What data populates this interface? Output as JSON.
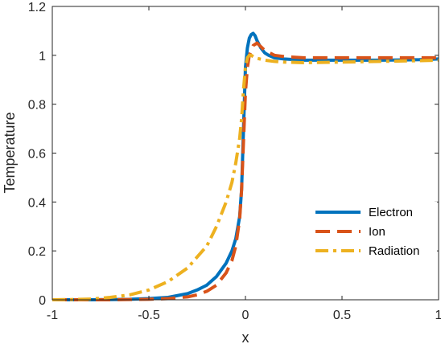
{
  "chart_data": {
    "type": "line",
    "xlabel": "x",
    "ylabel": "Temperature",
    "xlim": [
      -1,
      1
    ],
    "ylim": [
      0,
      1.2
    ],
    "xticks": [
      -1,
      -0.5,
      0,
      0.5,
      1
    ],
    "yticks": [
      0,
      0.2,
      0.4,
      0.6,
      0.8,
      1,
      1.2
    ],
    "xtick_labels": [
      "-1",
      "-0.5",
      "0",
      "0.5",
      "1"
    ],
    "ytick_labels": [
      "0",
      "0.2",
      "0.4",
      "0.6",
      "0.8",
      "1",
      "1.2"
    ],
    "grid": false,
    "legend_position": "lower-right",
    "series": [
      {
        "name": "Electron",
        "color": "#0072BD",
        "style": "solid",
        "x": [
          -1,
          -0.8,
          -0.6,
          -0.5,
          -0.4,
          -0.3,
          -0.25,
          -0.2,
          -0.15,
          -0.1,
          -0.07,
          -0.05,
          -0.03,
          -0.02,
          -0.01,
          0,
          0.01,
          0.02,
          0.03,
          0.04,
          0.05,
          0.06,
          0.08,
          0.1,
          0.12,
          0.15,
          0.2,
          0.3,
          0.5,
          0.7,
          0.9,
          1
        ],
        "y": [
          0,
          0,
          0.002,
          0.005,
          0.01,
          0.025,
          0.04,
          0.06,
          0.095,
          0.15,
          0.2,
          0.25,
          0.34,
          0.45,
          0.7,
          0.95,
          1.03,
          1.07,
          1.085,
          1.09,
          1.08,
          1.06,
          1.03,
          1.01,
          1.0,
          0.99,
          0.985,
          0.98,
          0.98,
          0.98,
          0.982,
          0.985
        ]
      },
      {
        "name": "Ion",
        "color": "#D95319",
        "style": "dashed",
        "x": [
          -1,
          -0.7,
          -0.5,
          -0.4,
          -0.3,
          -0.25,
          -0.2,
          -0.15,
          -0.1,
          -0.07,
          -0.05,
          -0.03,
          -0.02,
          -0.01,
          0,
          0.01,
          0.02,
          0.04,
          0.06,
          0.1,
          0.15,
          0.2,
          0.3,
          0.5,
          0.7,
          0.9,
          1
        ],
        "y": [
          0,
          0,
          0.002,
          0.005,
          0.012,
          0.02,
          0.035,
          0.06,
          0.11,
          0.16,
          0.22,
          0.33,
          0.45,
          0.65,
          0.85,
          0.95,
          1.0,
          1.04,
          1.05,
          1.02,
          1.0,
          0.995,
          0.99,
          0.99,
          0.99,
          0.99,
          0.99
        ]
      },
      {
        "name": "Radiation",
        "color": "#EDB120",
        "style": "dashdot",
        "x": [
          -1,
          -0.9,
          -0.8,
          -0.7,
          -0.6,
          -0.5,
          -0.4,
          -0.3,
          -0.2,
          -0.15,
          -0.1,
          -0.07,
          -0.05,
          -0.03,
          -0.02,
          -0.01,
          0,
          0.01,
          0.02,
          0.03,
          0.05,
          0.1,
          0.15,
          0.2,
          0.3,
          0.5,
          0.7,
          0.9,
          1
        ],
        "y": [
          0,
          0.001,
          0.003,
          0.01,
          0.02,
          0.04,
          0.075,
          0.13,
          0.22,
          0.3,
          0.4,
          0.48,
          0.56,
          0.66,
          0.74,
          0.86,
          0.95,
          0.99,
          1.0,
          1.0,
          0.99,
          0.98,
          0.975,
          0.972,
          0.97,
          0.972,
          0.975,
          0.978,
          0.98
        ]
      }
    ]
  }
}
